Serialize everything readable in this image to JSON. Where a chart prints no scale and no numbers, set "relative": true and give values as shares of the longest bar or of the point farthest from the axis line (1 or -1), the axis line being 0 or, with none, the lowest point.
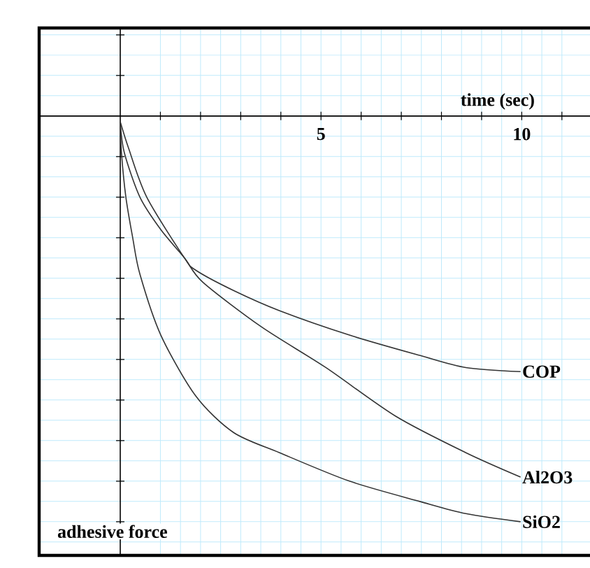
{
  "chart_data": {
    "type": "line",
    "relative": true,
    "xlabel": "time (sec)",
    "annotations": [
      "adhesive force"
    ],
    "xlim": [
      -2.02,
      11.7
    ],
    "xticks": [
      {
        "value": 1,
        "label": null
      },
      {
        "value": 2,
        "label": null
      },
      {
        "value": 3,
        "label": null
      },
      {
        "value": 4,
        "label": null
      },
      5,
      {
        "value": 6,
        "label": null
      },
      {
        "value": 7,
        "label": null
      },
      {
        "value": 8,
        "label": null
      },
      {
        "value": 9,
        "label": null
      },
      10,
      {
        "value": 11,
        "label": null
      }
    ],
    "grid": true,
    "marker": "none",
    "line_style": "solid",
    "series": [
      {
        "name": "COP",
        "color": "#333333",
        "x": [
          0,
          0.21,
          0.66,
          1.6,
          1.88,
          2.82,
          3.97,
          5.71,
          7.46,
          8.61,
          9.97
        ],
        "values": [
          -0.014,
          -0.08,
          -0.2,
          -0.35,
          -0.38,
          -0.43,
          -0.48,
          -0.54,
          -0.59,
          -0.62,
          -0.63
        ]
      },
      {
        "name": "Al2O3",
        "color": "#333333",
        "x": [
          0,
          0.1,
          0.49,
          1.01,
          1.6,
          2.06,
          3.52,
          5.12,
          6.86,
          8.61,
          9.97
        ],
        "values": [
          -0.014,
          -0.09,
          -0.2,
          -0.28,
          -0.35,
          -0.41,
          -0.52,
          -0.62,
          -0.74,
          -0.83,
          -0.89
        ]
      },
      {
        "name": "SiO2",
        "color": "#333333",
        "x": [
          0,
          0.03,
          0.14,
          0.31,
          0.49,
          1.01,
          1.88,
          2.82,
          3.97,
          5.71,
          7.46,
          8.61,
          9.97
        ],
        "values": [
          -0.014,
          -0.09,
          -0.2,
          -0.3,
          -0.39,
          -0.54,
          -0.69,
          -0.78,
          -0.83,
          -0.9,
          -0.95,
          -0.98,
          -1
        ]
      }
    ]
  }
}
